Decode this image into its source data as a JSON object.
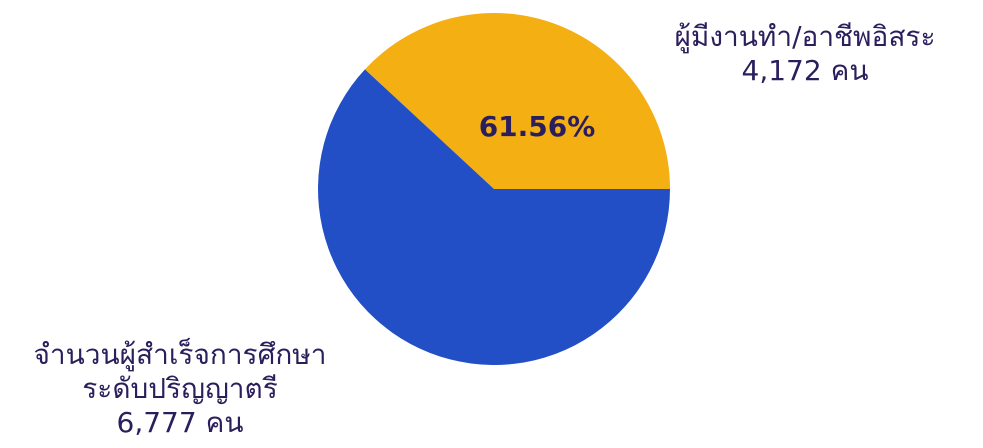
{
  "chart_data": {
    "type": "pie",
    "slices": [
      {
        "label_line1": "ผู้มีงานทำ/อาชีพอิสระ",
        "value_text": "4,172 คน",
        "value": 4172,
        "color": "#F4AF12",
        "percent_label": "61.56%"
      },
      {
        "label_line1": "จำนวนผู้สำเร็จการศึกษา",
        "label_line2": "ระดับปริญญาตรี",
        "value_text": "6,777 คน",
        "value": 6777,
        "color": "#224FC6",
        "percent_label": ""
      }
    ]
  }
}
